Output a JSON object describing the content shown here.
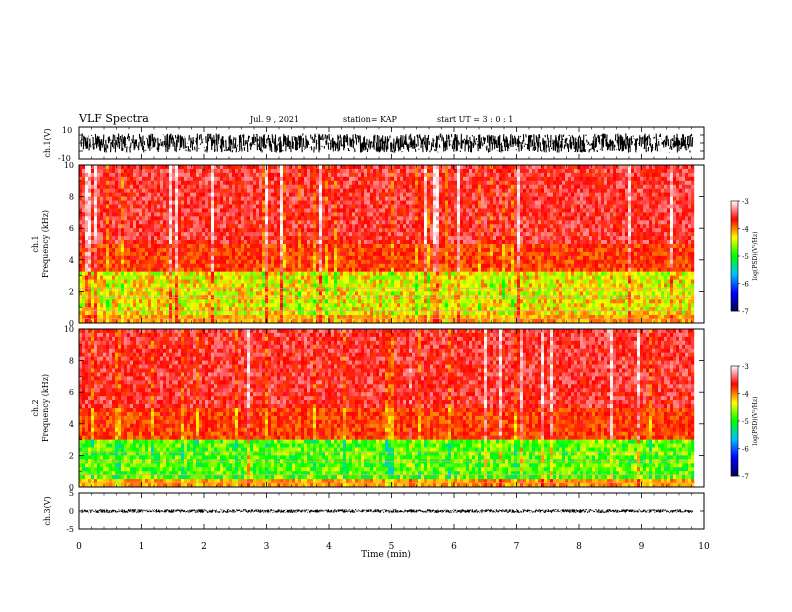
{
  "header": {
    "title": "VLF Spectra",
    "date": "Jul. 9 , 2021",
    "station": "station= KAP",
    "start": "start UT = 3 : 0 : 1"
  },
  "chart_data": [
    {
      "type": "line",
      "panel": "ch1",
      "ylabel": "ch.1(V)",
      "ylim": [
        -10,
        10
      ],
      "yticks": [
        "10",
        "-10"
      ],
      "x_range_min": [
        0,
        9.82
      ],
      "description_values": {
        "mean": 0,
        "amplitude": 6
      }
    },
    {
      "type": "heatmap",
      "panel": "spec1",
      "ylabel": "ch.1\nFrequency (kHz)",
      "ylim": [
        0,
        10
      ],
      "yticks": [
        "0",
        "2",
        "4",
        "6",
        "8",
        "10"
      ],
      "strong_band_khz": [
        0,
        3.2
      ],
      "colorbar": {
        "label": "log(PSD)(V²/Hz)",
        "range": [
          -7,
          -3
        ],
        "ticks": [
          "-3",
          "-4",
          "-5",
          "-6",
          "-7"
        ]
      }
    },
    {
      "type": "heatmap",
      "panel": "spec2",
      "ylabel": "ch.2\nFrequency (kHz)",
      "ylim": [
        0,
        10
      ],
      "yticks": [
        "0",
        "2",
        "4",
        "6",
        "8",
        "10"
      ],
      "strong_band_khz": [
        0,
        3.0
      ],
      "colorbar": {
        "label": "log(PSD)(V²/Hz)",
        "range": [
          -7,
          -3
        ],
        "ticks": [
          "-3",
          "-4",
          "-5",
          "-6",
          "-7"
        ]
      }
    },
    {
      "type": "line",
      "panel": "ch3",
      "ylabel": "ch.3(V)",
      "ylim": [
        -5,
        5
      ],
      "yticks": [
        "5",
        "0",
        "-5"
      ],
      "level": 0,
      "amplitude": 0.5
    }
  ],
  "xaxis": {
    "label": "Time (min)",
    "range": [
      0,
      10
    ],
    "ticks": [
      "0",
      "1",
      "2",
      "3",
      "4",
      "5",
      "6",
      "7",
      "8",
      "9",
      "10"
    ],
    "data_end_min": 9.82
  },
  "colors": {
    "background": "#ffffff",
    "trace": "#000000",
    "colormap": [
      "#000050",
      "#0000ff",
      "#00c0ff",
      "#00ff00",
      "#ffff00",
      "#ff0000",
      "#ffffff"
    ]
  }
}
